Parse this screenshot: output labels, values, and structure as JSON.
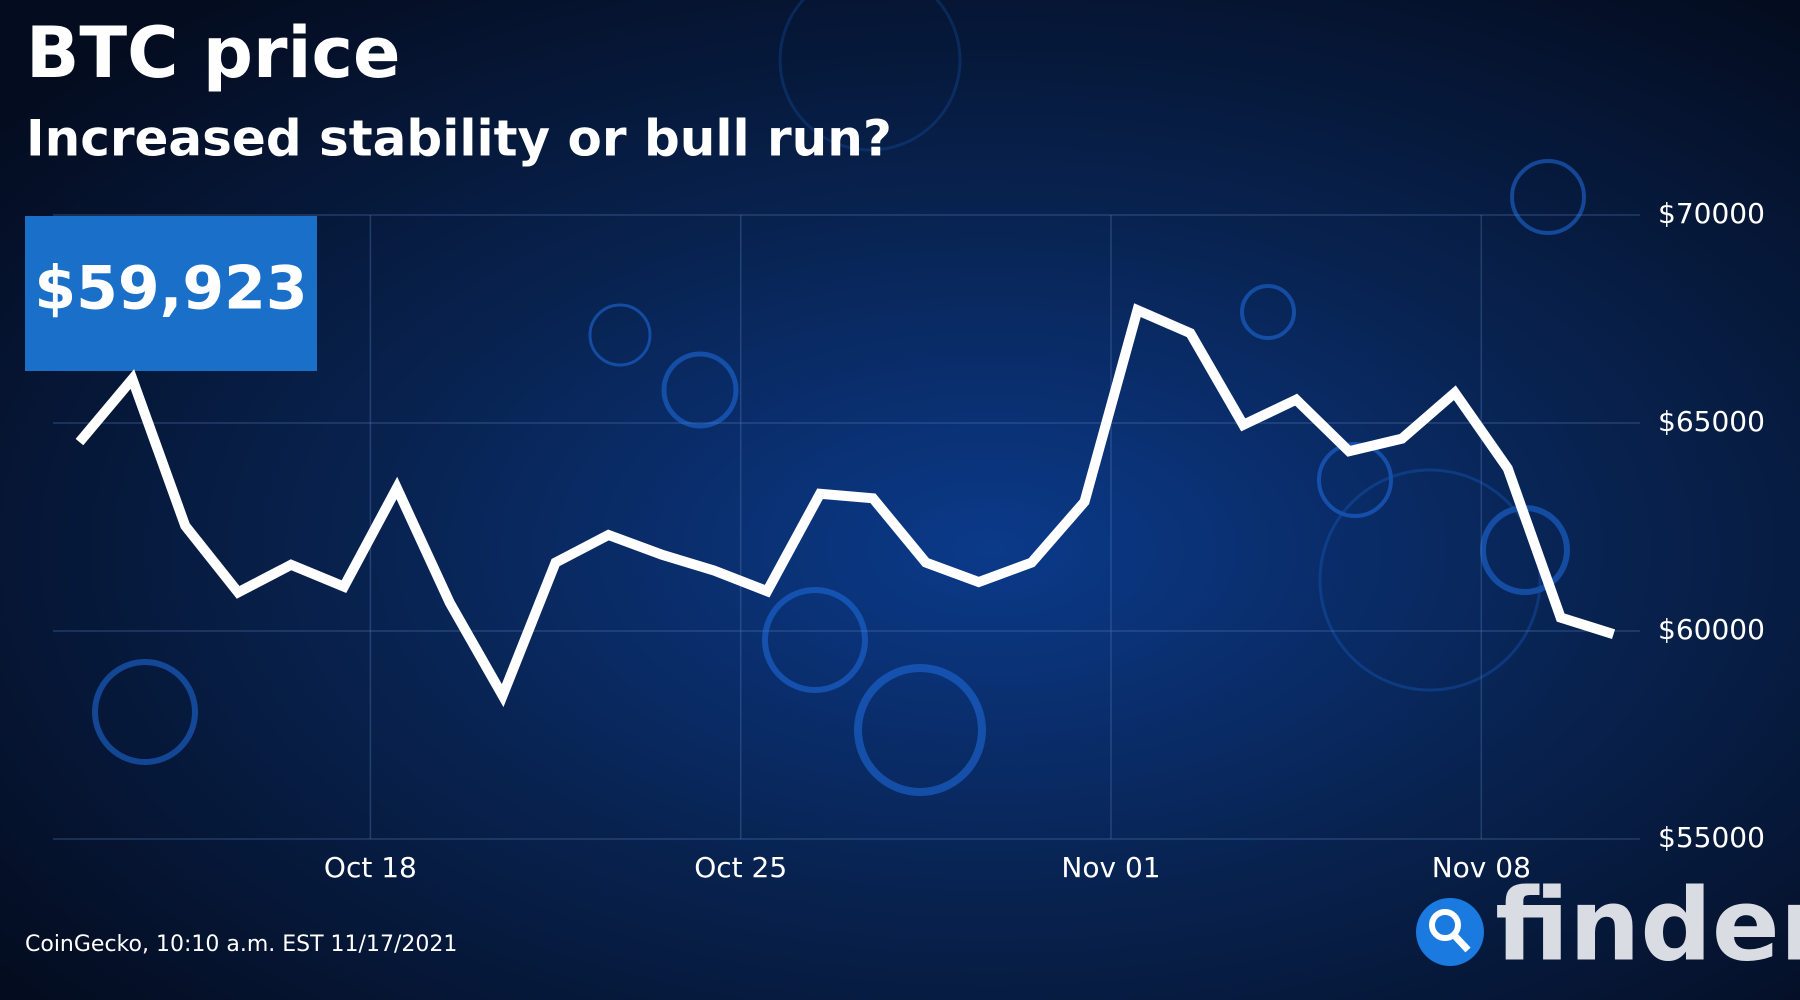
{
  "chart_data": {
    "type": "line",
    "title": "BTC price",
    "subtitle": "Increased stability or bull run?",
    "annotation": "$59,923",
    "source": "CoinGecko, 10:10 a.m. EST 11/17/2021",
    "logo": "finder",
    "x": [
      -5.5,
      -4.5,
      -3.5,
      -2.5,
      -1.5,
      -0.5,
      0.5,
      1.5,
      2.5,
      3.5,
      4.5,
      5.5,
      6.5,
      7.5,
      8.5,
      9.5,
      10.5,
      11.5,
      12.5,
      13.5,
      14.5,
      15.5,
      16.5,
      17.5,
      18.5,
      19.5,
      20.5,
      21.5,
      22.5,
      23.5
    ],
    "series": [
      {
        "name": "BTC",
        "color": "#ffffff",
        "values": [
          64541,
          66057,
          62528,
          60929,
          61591,
          61067,
          63438,
          60681,
          58448,
          61646,
          62308,
          61839,
          61453,
          60957,
          63300,
          63190,
          61646,
          61177,
          61646,
          63107,
          67712,
          67160,
          64955,
          65561,
          64320,
          64624,
          65727,
          63907,
          60323,
          59923
        ]
      }
    ],
    "xlim": [
      -6,
      24
    ],
    "xticks": [
      {
        "value": 0,
        "label": "Oct 18"
      },
      {
        "value": 7,
        "label": "Oct 25"
      },
      {
        "value": 14,
        "label": "Nov 01"
      },
      {
        "value": 21,
        "label": "Nov 08"
      }
    ],
    "ylim": [
      55000,
      70000
    ],
    "yticks": [
      {
        "value": 55000,
        "label": "$55000"
      },
      {
        "value": 60000,
        "label": "$60000"
      },
      {
        "value": 65000,
        "label": "$65000"
      },
      {
        "value": 70000,
        "label": "$70000"
      }
    ],
    "grid": true
  }
}
